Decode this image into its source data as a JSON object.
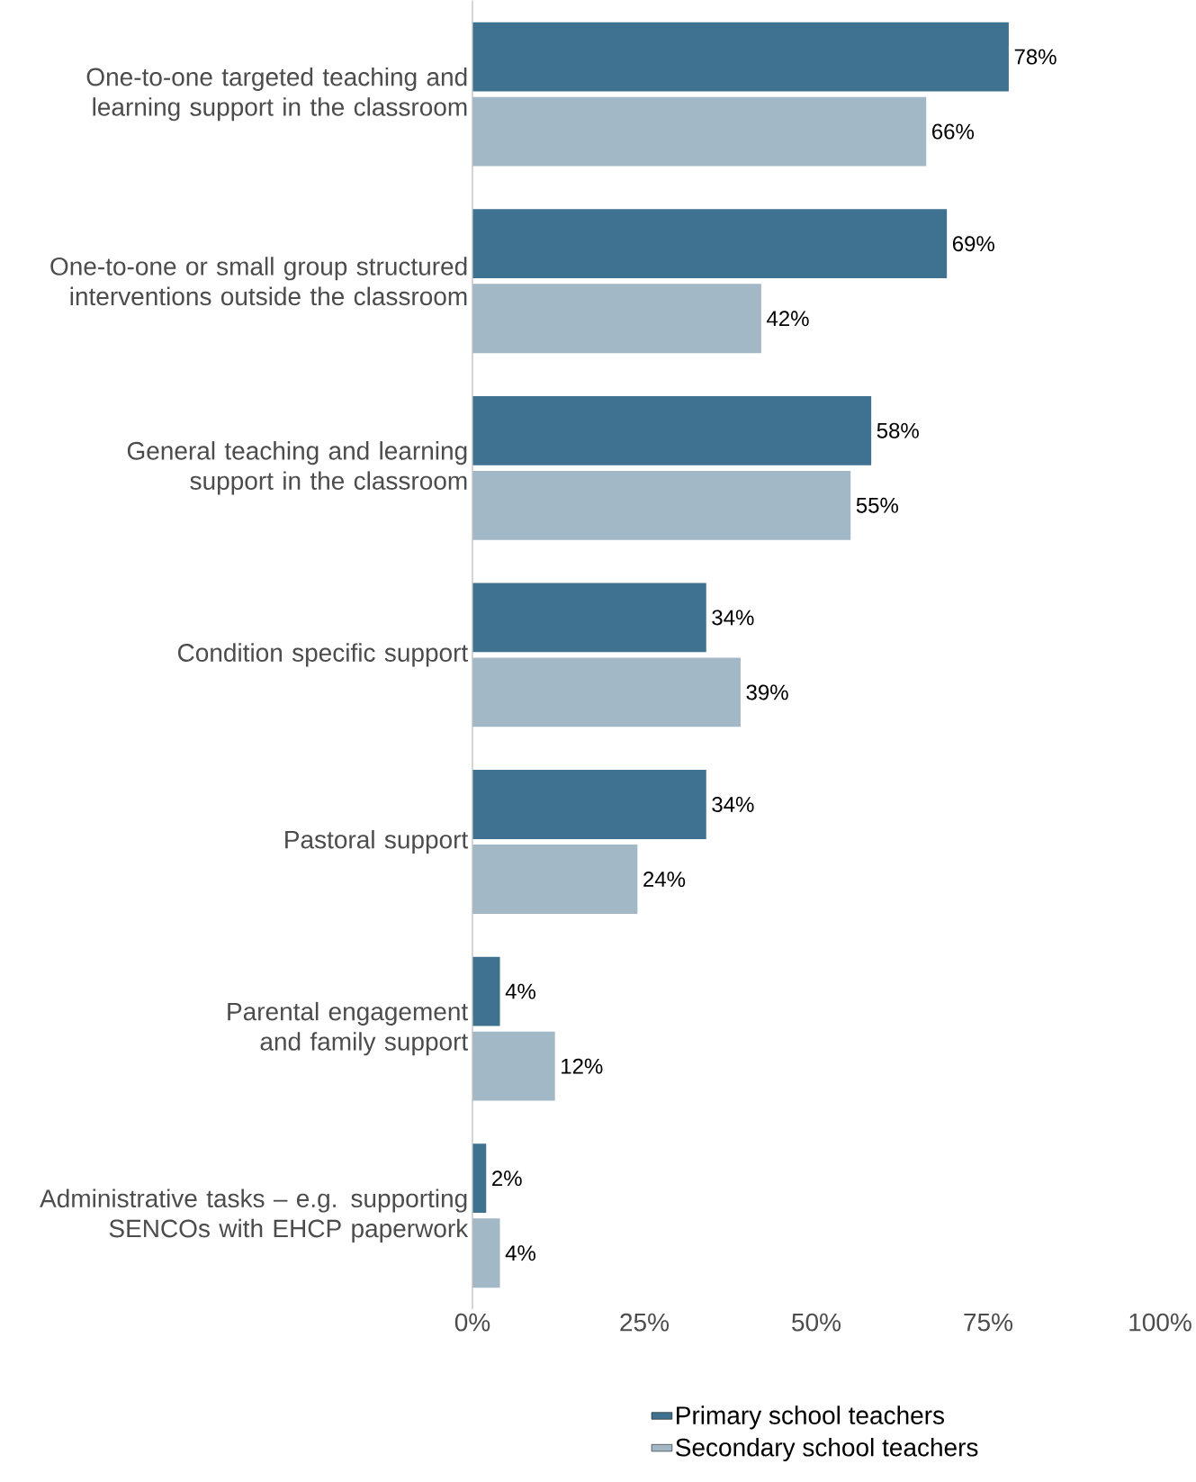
{
  "chart_data": {
    "type": "bar",
    "orientation": "horizontal",
    "categories": [
      "One-to-one targeted teaching and learning support in the classroom",
      "One-to-one or small group structured interventions outside the classroom",
      "General teaching and learning support in the classroom",
      "Condition specific support",
      "Pastoral support",
      "Parental engagement and family support",
      "Administrative tasks – e.g. supporting SENCOs with EHCP paperwork"
    ],
    "series": [
      {
        "name": "Primary school teachers",
        "color": "#3f7190",
        "values": [
          78,
          69,
          58,
          34,
          34,
          4,
          2
        ],
        "value_labels": [
          "78%",
          "69%",
          "58%",
          "34%",
          "34%",
          "4%",
          "2%"
        ]
      },
      {
        "name": "Secondary school teachers",
        "color": "#a2b8c7",
        "values": [
          66,
          42,
          55,
          39,
          24,
          12,
          4
        ],
        "value_labels": [
          "66%",
          "42%",
          "55%",
          "39%",
          "24%",
          "12%",
          "4%"
        ]
      }
    ],
    "xlim": [
      0,
      100
    ],
    "xticks": [
      {
        "value": 0,
        "label": "0%"
      },
      {
        "value": 25,
        "label": "25%"
      },
      {
        "value": 50,
        "label": "50%"
      },
      {
        "value": 75,
        "label": "75%"
      },
      {
        "value": 100,
        "label": "100%"
      }
    ],
    "legend": "bottom"
  }
}
